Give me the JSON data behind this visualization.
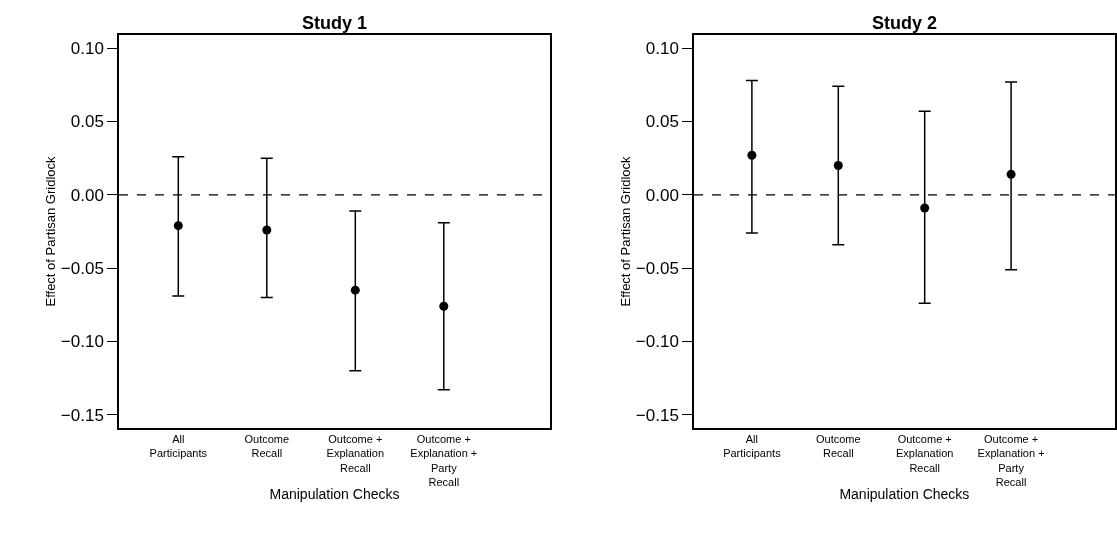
{
  "chart_data": [
    {
      "type": "scatter",
      "title": "Study 1",
      "xlabel": "Manipulation Checks",
      "ylabel": "Effect of Partisan Gridlock",
      "categories": [
        "All\nParticipants",
        "Outcome\nRecall",
        "Outcome +\nExplanation\nRecall",
        "Outcome +\nExplanation +\nParty\nRecall"
      ],
      "values": [
        -0.021,
        -0.024,
        -0.065,
        -0.076
      ],
      "errors": [
        [
          -0.069,
          0.026
        ],
        [
          -0.07,
          0.025
        ],
        [
          -0.12,
          -0.011
        ],
        [
          -0.133,
          -0.019
        ]
      ],
      "color": "#000000",
      "marker": "circle",
      "ylim": [
        -0.159,
        0.109
      ],
      "yticks": [
        {
          "value": -0.15,
          "label": "−0.15"
        },
        {
          "value": -0.1,
          "label": "−0.10"
        },
        {
          "value": -0.05,
          "label": "−0.05"
        },
        {
          "value": 0,
          "label": "0.00"
        },
        {
          "value": 0.05,
          "label": "0.05"
        },
        {
          "value": 0.1,
          "label": "0.10"
        }
      ],
      "ref_lines": [
        {
          "axis": "y",
          "value": 0,
          "line_style": "dashed",
          "color": "#000000"
        }
      ]
    },
    {
      "type": "scatter",
      "title": "Study 2",
      "xlabel": "Manipulation Checks",
      "ylabel": "Effect of Partisan Gridlock",
      "categories": [
        "All\nParticipants",
        "Outcome\nRecall",
        "Outcome +\nExplanation\nRecall",
        "Outcome +\nExplanation +\nParty\nRecall"
      ],
      "values": [
        0.027,
        0.02,
        -0.009,
        0.014
      ],
      "errors": [
        [
          -0.026,
          0.078
        ],
        [
          -0.034,
          0.074
        ],
        [
          -0.074,
          0.057
        ],
        [
          -0.051,
          0.077
        ]
      ],
      "color": "#000000",
      "marker": "circle",
      "ylim": [
        -0.159,
        0.109
      ],
      "yticks": [
        {
          "value": -0.15,
          "label": "−0.15"
        },
        {
          "value": -0.1,
          "label": "−0.10"
        },
        {
          "value": -0.05,
          "label": "−0.05"
        },
        {
          "value": 0,
          "label": "0.00"
        },
        {
          "value": 0.05,
          "label": "0.05"
        },
        {
          "value": 0.1,
          "label": "0.10"
        }
      ],
      "ref_lines": [
        {
          "axis": "y",
          "value": 0,
          "line_style": "dashed",
          "color": "#000000"
        }
      ]
    }
  ]
}
